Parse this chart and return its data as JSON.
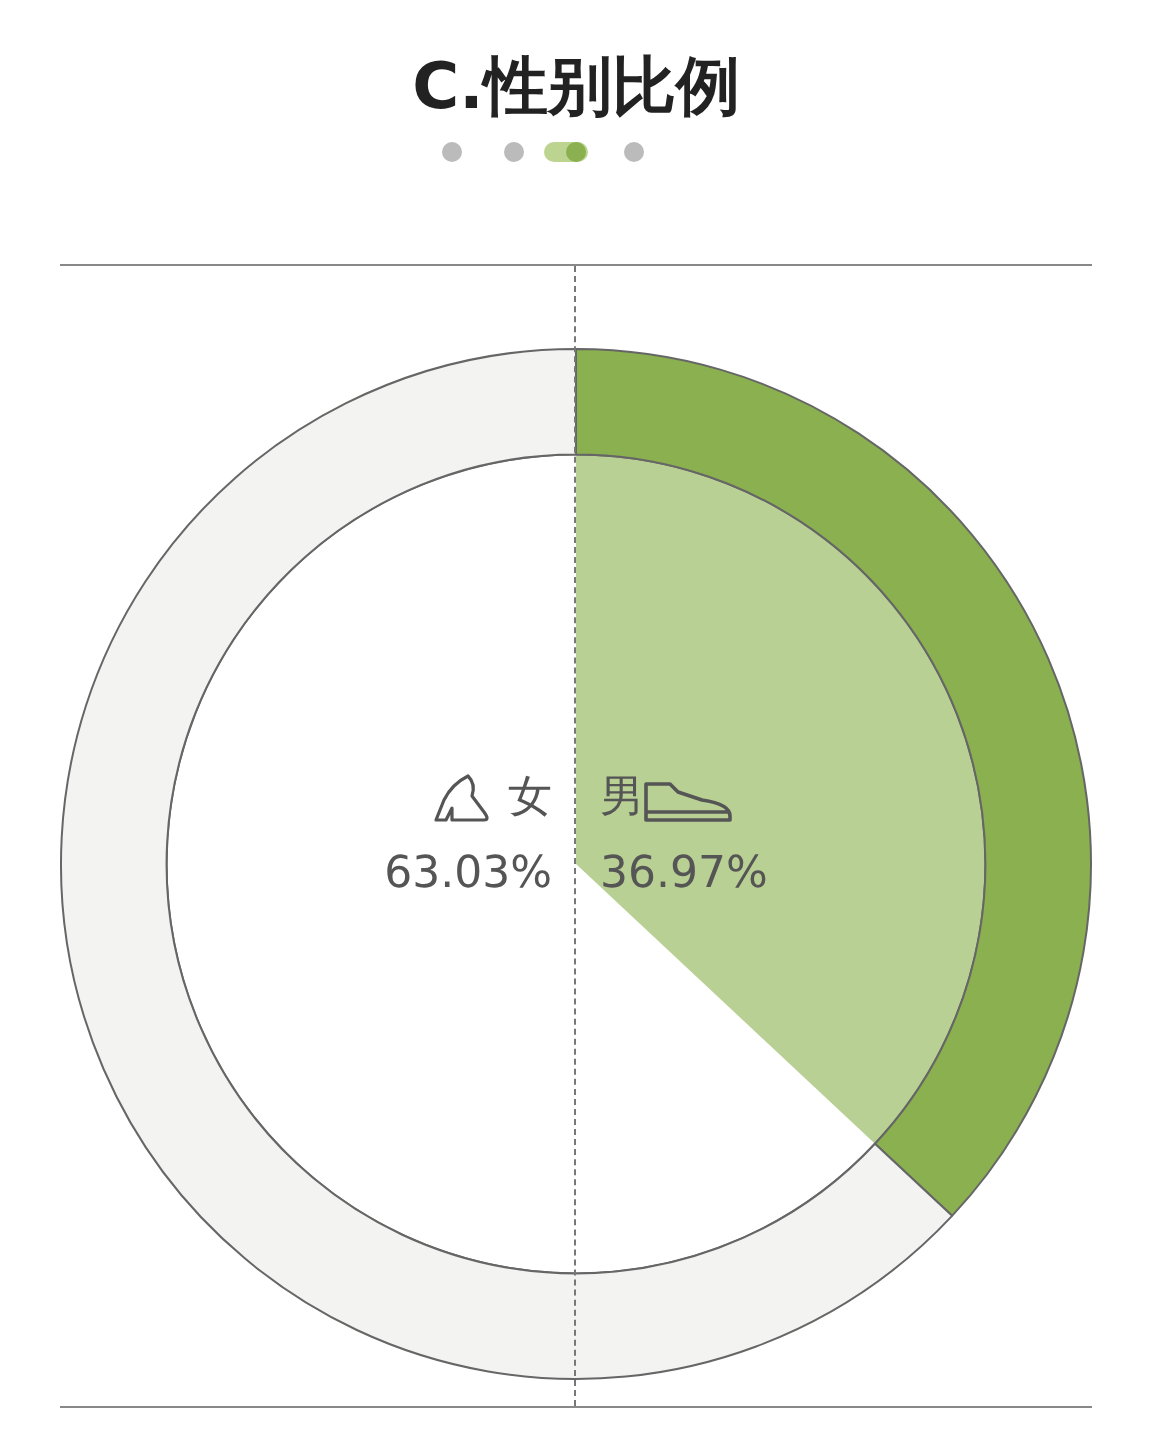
{
  "chart_data": {
    "type": "donut",
    "title": "C.性别比例",
    "categories": [
      "男",
      "女"
    ],
    "values": [
      36.97,
      63.03
    ],
    "colors": [
      "#8ab04f",
      "#f3f3f1"
    ],
    "value_labels": [
      "36.97%",
      "63.03%"
    ],
    "legend": false
  }
}
